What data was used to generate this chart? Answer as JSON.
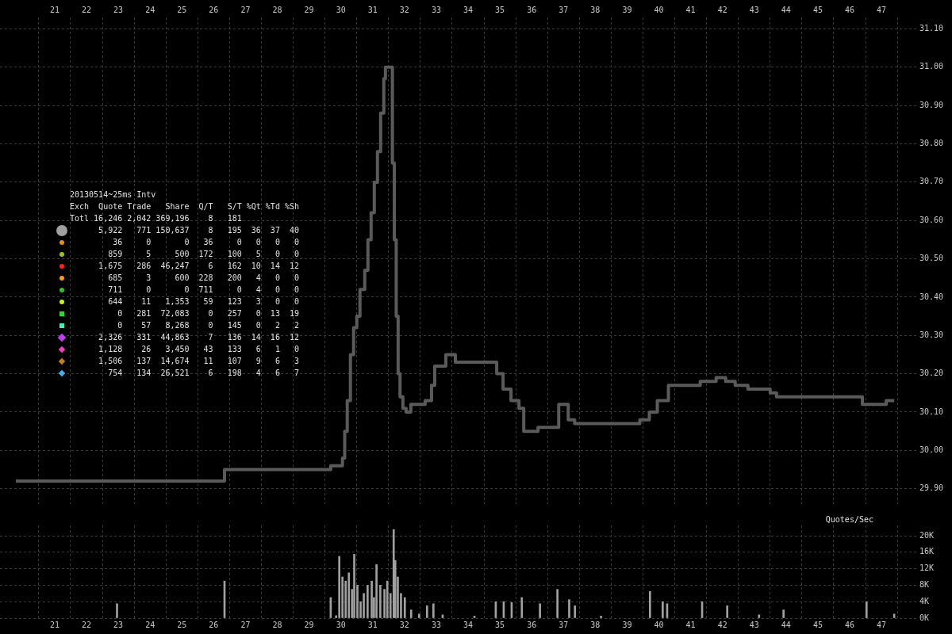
{
  "chart_data": [
    {
      "type": "step",
      "xlim": [
        19.28,
        48.12
      ],
      "xticks": [
        21,
        22,
        23,
        24,
        25,
        26,
        27,
        28,
        29,
        30,
        31,
        32,
        33,
        34,
        35,
        36,
        37,
        38,
        39,
        40,
        41,
        42,
        43,
        44,
        45,
        46,
        47
      ],
      "ylim": [
        29.86,
        31.13
      ],
      "yticks": [
        {
          "value": 29.9,
          "label": "29.90"
        },
        {
          "value": 30.0,
          "label": "30.00"
        },
        {
          "value": 30.1,
          "label": "30.10"
        },
        {
          "value": 30.2,
          "label": "30.20"
        },
        {
          "value": 30.3,
          "label": "30.30"
        },
        {
          "value": 30.4,
          "label": "30.40"
        },
        {
          "value": 30.5,
          "label": "30.50"
        },
        {
          "value": 30.6,
          "label": "30.60"
        },
        {
          "value": 30.7,
          "label": "30.70"
        },
        {
          "value": 30.8,
          "label": "30.80"
        },
        {
          "value": 30.9,
          "label": "30.90"
        },
        {
          "value": 31.0,
          "label": "31.00"
        },
        {
          "value": 31.1,
          "label": "31.10"
        }
      ],
      "grid": true,
      "marker": "none",
      "series": [
        {
          "color": "#5a5a5a",
          "x": [
            19.78,
            26.34,
            29.68,
            30.05,
            30.12,
            30.2,
            30.3,
            30.4,
            30.5,
            30.6,
            30.75,
            30.85,
            30.95,
            31.05,
            31.15,
            31.25,
            31.35,
            31.4,
            31.62,
            31.68,
            31.74,
            31.8,
            31.86,
            31.95,
            32.05,
            32.2,
            32.65,
            32.85,
            32.95,
            33.3,
            33.6,
            34.9,
            35.1,
            35.35,
            35.6,
            35.75,
            36.2,
            36.85,
            37.15,
            37.35,
            39.4,
            39.7,
            39.95,
            40.3,
            41.3,
            41.8,
            42.1,
            42.4,
            42.8,
            43.5,
            43.7,
            46.4,
            47.15,
            47.4
          ],
          "values": [
            29.92,
            29.95,
            29.96,
            29.98,
            30.05,
            30.13,
            30.25,
            30.32,
            30.35,
            30.42,
            30.47,
            30.55,
            30.62,
            30.7,
            30.78,
            30.88,
            30.97,
            31.0,
            30.75,
            30.55,
            30.35,
            30.2,
            30.14,
            30.11,
            30.1,
            30.12,
            30.13,
            30.17,
            30.22,
            30.25,
            30.23,
            30.2,
            30.16,
            30.13,
            30.11,
            30.05,
            30.06,
            30.12,
            30.08,
            30.07,
            30.08,
            30.1,
            30.13,
            30.17,
            30.18,
            30.19,
            30.18,
            30.17,
            30.16,
            30.15,
            30.14,
            30.12,
            30.13,
            30.13
          ]
        }
      ],
      "annotations": [
        "20130514~25ms Intv",
        "Exch  Quote Trade   Share  Q/T   S/T %Qt %Td %Sh",
        "Totl 16,246 2,042 369,196    8   181",
        "      5,922   771 150,637    8   195  36  37  40",
        "         36     0       0   36     0   0   0   0",
        "        859     5     500  172   100   5   0   0",
        "      1,675   286  46,247    6   162  10  14  12",
        "        685     3     600  228   200   4   0   0",
        "        711     0       0  711     0   4   0   0",
        "        644    11   1,353   59   123   3   0   0",
        "          0   281  72,083    0   257   0  13  19",
        "          0    57   8,268    0   145   0   2   2",
        "      2,326   331  44,863    7   136  14  16  12",
        "      1,128    26   3,450   43   133   6   1   0",
        "      1,506   137  14,674   11   107   9   6   3",
        "        754   134  26,521    6   198   4   6   7"
      ]
    },
    {
      "type": "bar",
      "ylabel": "Quotes/Sec",
      "xlim": [
        19.28,
        48.12
      ],
      "xticks": [
        21,
        22,
        23,
        24,
        25,
        26,
        27,
        28,
        29,
        30,
        31,
        32,
        33,
        34,
        35,
        36,
        37,
        38,
        39,
        40,
        41,
        42,
        43,
        44,
        45,
        46,
        47
      ],
      "ylim": [
        0,
        22500
      ],
      "yticks": [
        {
          "value": 0,
          "label": "0K"
        },
        {
          "value": 4000,
          "label": "4K"
        },
        {
          "value": 8000,
          "label": "8K"
        },
        {
          "value": 12000,
          "label": "12K"
        },
        {
          "value": 16000,
          "label": "16K"
        },
        {
          "value": 20000,
          "label": "20K"
        }
      ],
      "grid": true,
      "color": "#a0a0a0",
      "x": [
        22.96,
        26.34,
        29.68,
        29.85,
        29.95,
        30.05,
        30.15,
        30.25,
        30.35,
        30.42,
        30.52,
        30.62,
        30.72,
        30.84,
        30.97,
        31.04,
        31.12,
        31.24,
        31.37,
        31.46,
        31.56,
        31.66,
        31.71,
        31.79,
        31.89,
        32.01,
        32.21,
        32.46,
        32.71,
        32.91,
        33.2,
        34.2,
        34.87,
        35.12,
        35.37,
        35.69,
        36.26,
        36.81,
        37.18,
        37.36,
        38.18,
        39.72,
        40.12,
        40.26,
        41.36,
        42.15,
        43.15,
        43.92,
        46.53,
        47.4
      ],
      "values": [
        3500,
        9000,
        5000,
        600,
        15000,
        10000,
        9000,
        11000,
        7000,
        15500,
        8000,
        4000,
        6000,
        8000,
        9000,
        5000,
        13000,
        8000,
        7000,
        9000,
        6000,
        21500,
        14000,
        10000,
        6000,
        5000,
        2000,
        1000,
        3000,
        3500,
        800,
        500,
        4000,
        4000,
        3800,
        5000,
        3500,
        7000,
        4500,
        3000,
        500,
        6500,
        4000,
        3500,
        4000,
        3000,
        800,
        2000,
        4000,
        1000
      ]
    }
  ]
}
